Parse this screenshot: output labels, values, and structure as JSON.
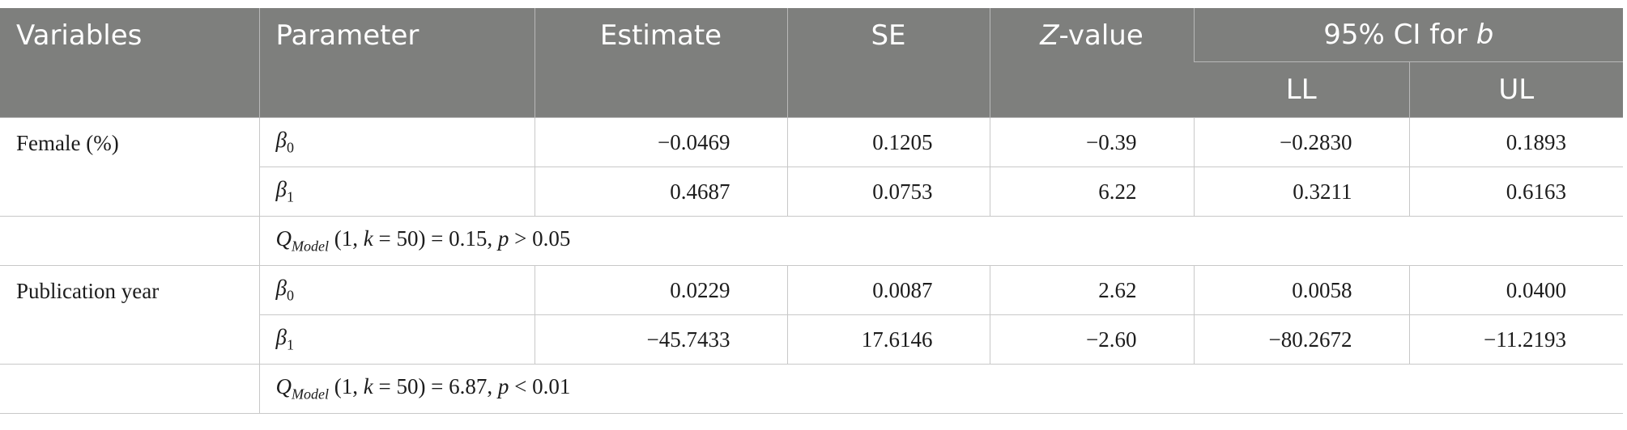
{
  "header": {
    "variables": "Variables",
    "parameter": "Parameter",
    "estimate": "Estimate",
    "se": "SE",
    "z_letter": "Z",
    "z_rest": "-value",
    "ci_text": "95% CI for ",
    "ci_b": "b",
    "ll": "LL",
    "ul": "UL"
  },
  "groups": [
    {
      "variable": "Female (%)",
      "rows": [
        {
          "param_sym": "β",
          "param_sub": "0",
          "estimate": "−0.0469",
          "se": "0.1205",
          "z": "−0.39",
          "ll": "−0.2830",
          "ul": "0.1893"
        },
        {
          "param_sym": "β",
          "param_sub": "1",
          "estimate": "0.4687",
          "se": "0.0753",
          "z": "6.22",
          "ll": "0.3211",
          "ul": "0.6163"
        }
      ],
      "model": {
        "q": "Q",
        "q_sub": "Model",
        "args_pre": " (1, ",
        "k": "k",
        "args_mid": " = 50) = 0.15, ",
        "p": "p",
        "args_post": " > 0.05"
      }
    },
    {
      "variable": "Publication year",
      "rows": [
        {
          "param_sym": "β",
          "param_sub": "0",
          "estimate": "0.0229",
          "se": "0.0087",
          "z": "2.62",
          "ll": "0.0058",
          "ul": "0.0400"
        },
        {
          "param_sym": "β",
          "param_sub": "1",
          "estimate": "−45.7433",
          "se": "17.6146",
          "z": "−2.60",
          "ll": "−80.2672",
          "ul": "−11.2193"
        }
      ],
      "model": {
        "q": "Q",
        "q_sub": "Model",
        "args_pre": " (1, ",
        "k": "k",
        "args_mid": " = 50) = 6.87, ",
        "p": "p",
        "args_post": " < 0.01"
      }
    }
  ]
}
